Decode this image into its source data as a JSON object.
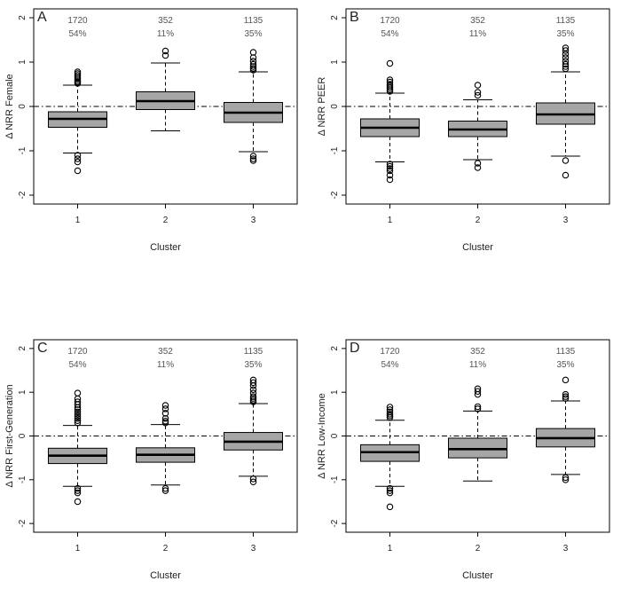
{
  "chart_data": [
    {
      "type": "box",
      "panel_label": "A",
      "ylabel": "Δ NRR Female",
      "xlabel": "Cluster",
      "ylim": [
        -2.2,
        2.2
      ],
      "yticks": [
        "-2",
        "-1",
        "0",
        "1",
        "2"
      ],
      "reference_line_y": 0,
      "categories": [
        "1",
        "2",
        "3"
      ],
      "counts": [
        "1720",
        "352",
        "1135"
      ],
      "percents": [
        "54%",
        "11%",
        "35%"
      ],
      "boxes": [
        {
          "lower_whisker": -1.05,
          "q1": -0.47,
          "median": -0.28,
          "q3": -0.12,
          "upper_whisker": 0.48,
          "outliers": [
            0.52,
            0.55,
            0.58,
            0.62,
            0.66,
            0.7,
            0.74,
            0.78,
            -1.1,
            -1.18,
            -1.25,
            -1.45
          ]
        },
        {
          "lower_whisker": -0.55,
          "q1": -0.07,
          "median": 0.12,
          "q3": 0.33,
          "upper_whisker": 0.98,
          "outliers": [
            1.15,
            1.25
          ]
        },
        {
          "lower_whisker": -1.02,
          "q1": -0.36,
          "median": -0.14,
          "q3": 0.09,
          "upper_whisker": 0.78,
          "outliers": [
            0.82,
            0.86,
            0.9,
            0.95,
            1.02,
            1.1,
            1.22,
            -1.12,
            -1.18,
            -1.22
          ]
        }
      ]
    },
    {
      "type": "box",
      "panel_label": "B",
      "ylabel": "Δ NRR PEER",
      "xlabel": "Cluster",
      "ylim": [
        -2.2,
        2.2
      ],
      "yticks": [
        "-2",
        "-1",
        "0",
        "1",
        "2"
      ],
      "reference_line_y": 0,
      "categories": [
        "1",
        "2",
        "3"
      ],
      "counts": [
        "1720",
        "352",
        "1135"
      ],
      "percents": [
        "54%",
        "11%",
        "35%"
      ],
      "boxes": [
        {
          "lower_whisker": -1.25,
          "q1": -0.68,
          "median": -0.48,
          "q3": -0.28,
          "upper_whisker": 0.3,
          "outliers": [
            0.34,
            0.38,
            0.42,
            0.46,
            0.5,
            0.55,
            0.6,
            0.97,
            -1.3,
            -1.35,
            -1.4,
            -1.45,
            -1.55,
            -1.65
          ]
        },
        {
          "lower_whisker": -1.2,
          "q1": -0.68,
          "median": -0.52,
          "q3": -0.33,
          "upper_whisker": 0.15,
          "outliers": [
            0.25,
            0.32,
            0.48,
            -1.28,
            -1.38
          ]
        },
        {
          "lower_whisker": -1.12,
          "q1": -0.4,
          "median": -0.18,
          "q3": 0.08,
          "upper_whisker": 0.78,
          "outliers": [
            0.85,
            0.9,
            0.95,
            1.02,
            1.1,
            1.18,
            1.26,
            1.32,
            -1.22,
            -1.55
          ]
        }
      ]
    },
    {
      "type": "box",
      "panel_label": "C",
      "ylabel": "Δ NRR First-Generation",
      "xlabel": "Cluster",
      "ylim": [
        -2.2,
        2.2
      ],
      "yticks": [
        "-2",
        "-1",
        "0",
        "1",
        "2"
      ],
      "reference_line_y": 0,
      "categories": [
        "1",
        "2",
        "3"
      ],
      "counts": [
        "1720",
        "352",
        "1135"
      ],
      "percents": [
        "54%",
        "11%",
        "35%"
      ],
      "boxes": [
        {
          "lower_whisker": -1.15,
          "q1": -0.63,
          "median": -0.45,
          "q3": -0.28,
          "upper_whisker": 0.24,
          "outliers": [
            0.3,
            0.35,
            0.4,
            0.45,
            0.5,
            0.55,
            0.6,
            0.65,
            0.72,
            0.78,
            0.85,
            0.98,
            -1.2,
            -1.25,
            -1.3,
            -1.5
          ]
        },
        {
          "lower_whisker": -1.12,
          "q1": -0.6,
          "median": -0.43,
          "q3": -0.27,
          "upper_whisker": 0.26,
          "outliers": [
            0.3,
            0.34,
            0.4,
            0.52,
            0.62,
            0.7,
            -1.2,
            -1.25
          ]
        },
        {
          "lower_whisker": -0.92,
          "q1": -0.32,
          "median": -0.13,
          "q3": 0.08,
          "upper_whisker": 0.74,
          "outliers": [
            0.78,
            0.82,
            0.86,
            0.9,
            0.98,
            1.06,
            1.15,
            1.22,
            1.28,
            -0.98,
            -1.05
          ]
        }
      ]
    },
    {
      "type": "box",
      "panel_label": "D",
      "ylabel": "Δ NRR Low-Income",
      "xlabel": "Cluster",
      "ylim": [
        -2.2,
        2.2
      ],
      "yticks": [
        "-2",
        "-1",
        "0",
        "1",
        "2"
      ],
      "reference_line_y": 0,
      "categories": [
        "1",
        "2",
        "3"
      ],
      "counts": [
        "1720",
        "352",
        "1135"
      ],
      "percents": [
        "54%",
        "11%",
        "35%"
      ],
      "boxes": [
        {
          "lower_whisker": -1.15,
          "q1": -0.58,
          "median": -0.37,
          "q3": -0.2,
          "upper_whisker": 0.36,
          "outliers": [
            0.42,
            0.46,
            0.5,
            0.55,
            0.6,
            0.66,
            -1.2,
            -1.25,
            -1.3,
            -1.62
          ]
        },
        {
          "lower_whisker": -1.03,
          "q1": -0.5,
          "median": -0.3,
          "q3": -0.05,
          "upper_whisker": 0.57,
          "outliers": [
            0.62,
            0.67,
            0.95,
            1.02,
            1.08
          ]
        },
        {
          "lower_whisker": -0.88,
          "q1": -0.25,
          "median": -0.05,
          "q3": 0.17,
          "upper_whisker": 0.8,
          "outliers": [
            0.86,
            0.9,
            0.95,
            1.28,
            -0.95,
            -1.0
          ]
        }
      ]
    }
  ]
}
